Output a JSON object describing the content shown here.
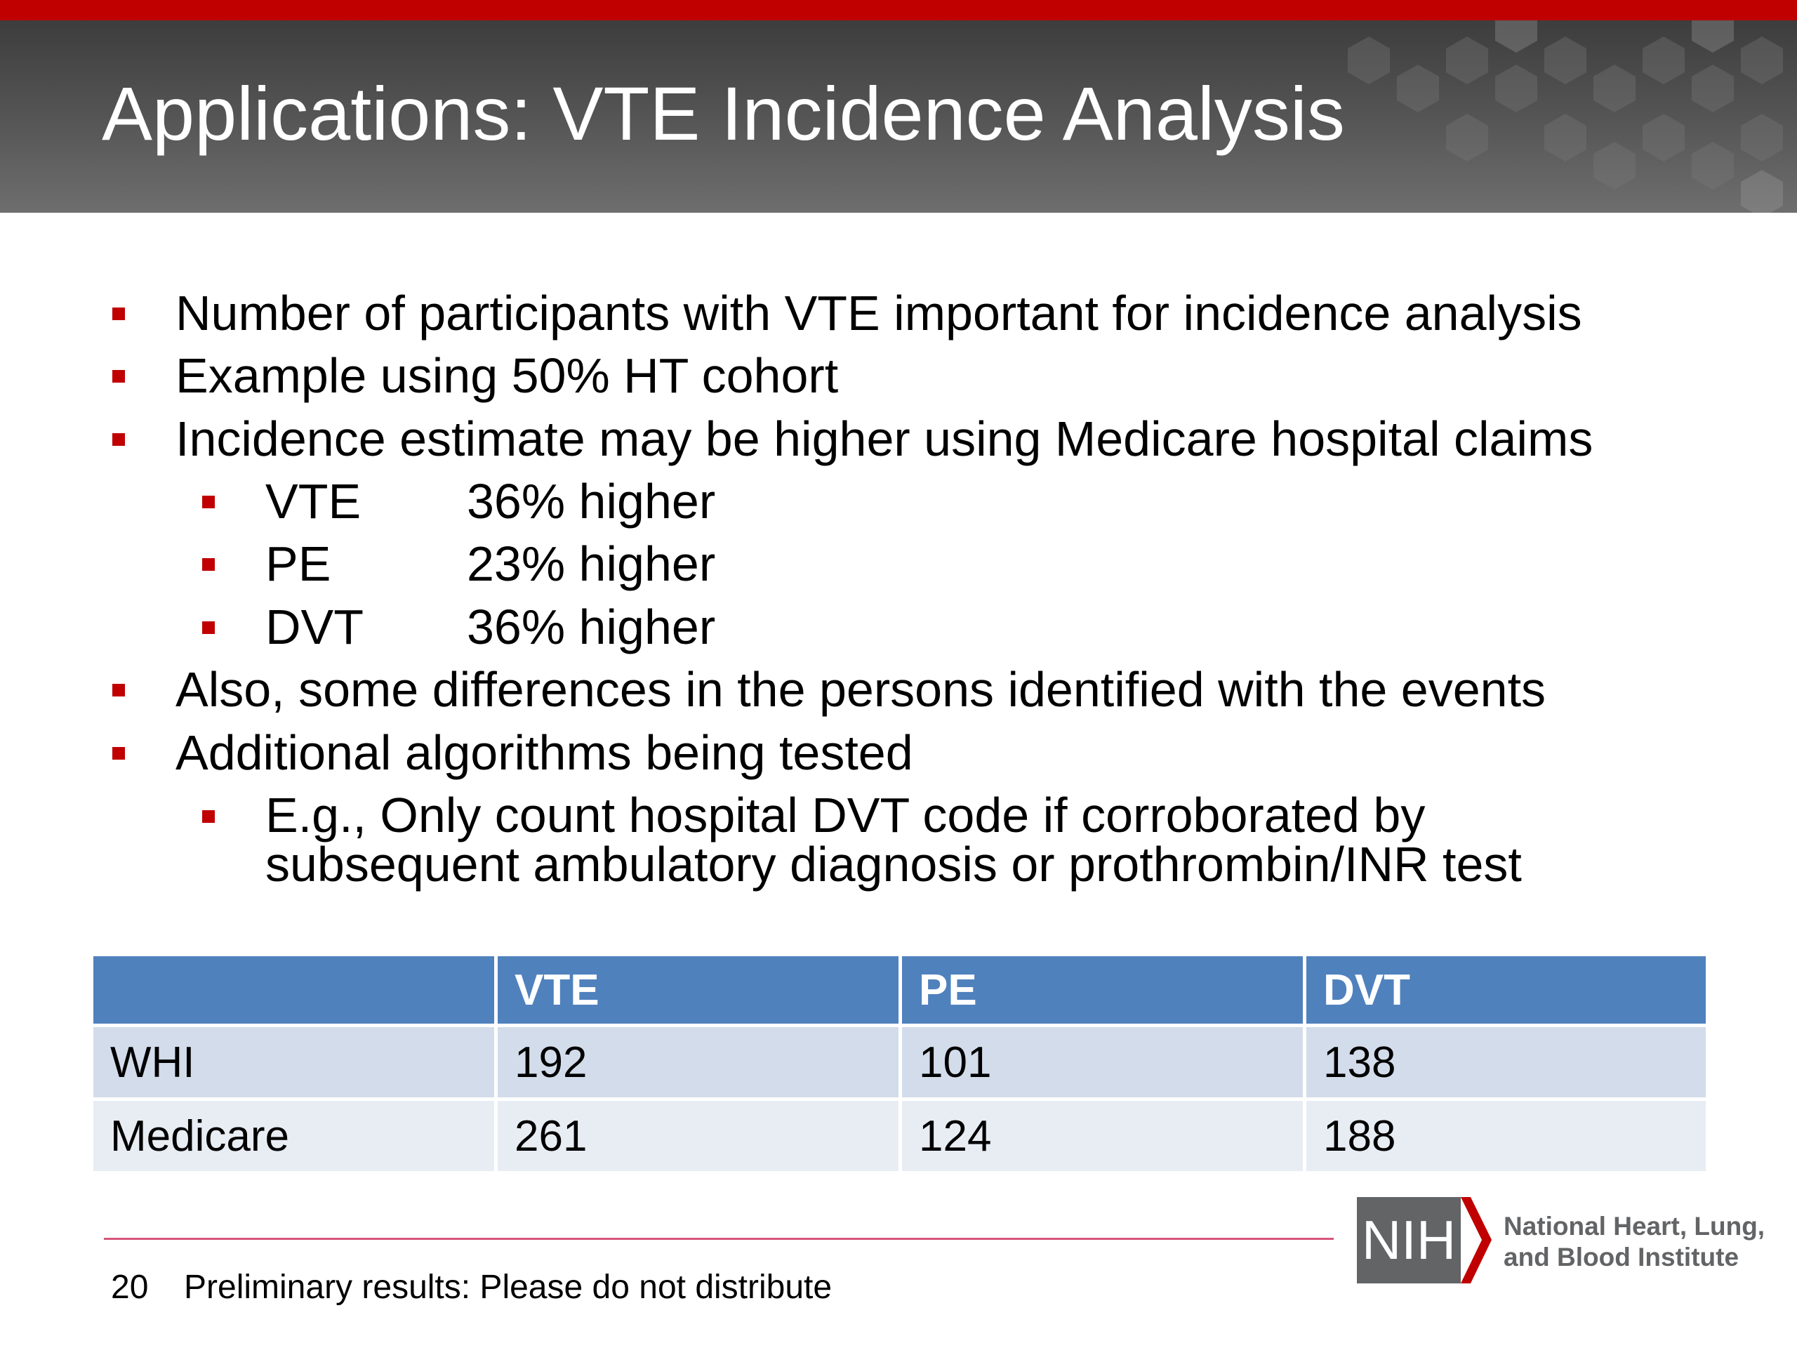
{
  "slide": {
    "title": "Applications:  VTE Incidence Analysis"
  },
  "bullets": {
    "b1": "Number of participants with VTE important for incidence analysis",
    "b2": "Example using 50% HT cohort",
    "b3": "Incidence estimate may be higher using Medicare hospital claims",
    "sub": [
      {
        "label": "VTE",
        "value": "36% higher"
      },
      {
        "label": "PE",
        "value": "23% higher"
      },
      {
        "label": "DVT",
        "value": "36% higher"
      }
    ],
    "b4": "Also, some differences in the persons identified with the events",
    "b5": "Additional algorithms being tested",
    "b5_sub": "E.g., Only count hospital DVT code if corroborated by subsequent ambulatory diagnosis or prothrombin/INR test"
  },
  "table": {
    "headers": [
      "",
      "VTE",
      "PE",
      "DVT"
    ],
    "rows": [
      [
        "WHI",
        "192",
        "101",
        "138"
      ],
      [
        "Medicare",
        "261",
        "124",
        "188"
      ]
    ]
  },
  "footer": {
    "page_number": "20",
    "note": "Preliminary results:  Please do not distribute"
  },
  "logo": {
    "mark": "NIH",
    "institute_line1": "National Heart, Lung,",
    "institute_line2": "and Blood Institute"
  },
  "colors": {
    "accent_red": "#c00000",
    "table_header": "#4f81bd",
    "table_row1": "#d3dcea",
    "table_row2": "#e8edf4",
    "logo_gray": "#636466"
  }
}
